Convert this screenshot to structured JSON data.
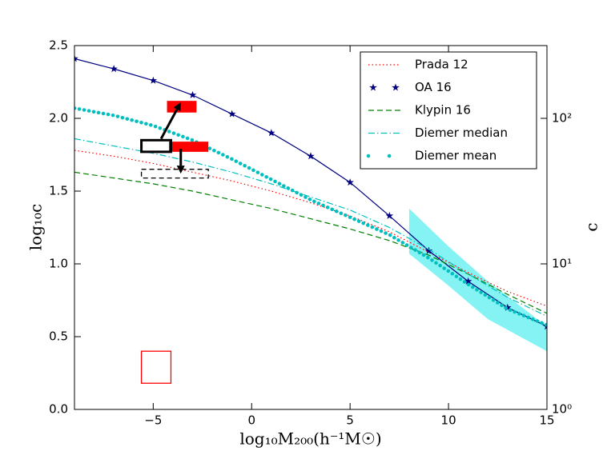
{
  "chart_data": {
    "type": "line",
    "xlabel": "log₁₀M₂₀₀(h⁻¹M☉)",
    "ylabel": "log₁₀c",
    "y2label": "c",
    "x": [
      -9,
      -7,
      -5,
      -3,
      -1,
      1,
      3,
      5,
      7,
      9,
      11,
      13,
      15
    ],
    "series": [
      {
        "name": "Prada 12",
        "color": "#ff0000",
        "style": "dotted",
        "values": [
          1.78,
          1.74,
          1.69,
          1.63,
          1.57,
          1.5,
          1.42,
          1.33,
          1.22,
          1.08,
          0.94,
          0.81,
          0.71
        ]
      },
      {
        "name": "OA 16",
        "color": "#000080",
        "style": "stars",
        "values": [
          2.41,
          2.34,
          2.26,
          2.16,
          2.03,
          1.9,
          1.74,
          1.56,
          1.33,
          1.09,
          0.88,
          0.7,
          0.57
        ]
      },
      {
        "name": "Klypin 16",
        "color": "#008000",
        "style": "dashed",
        "values": [
          1.63,
          1.59,
          1.55,
          1.5,
          1.44,
          1.38,
          1.31,
          1.24,
          1.16,
          1.06,
          0.93,
          0.79,
          0.66
        ]
      },
      {
        "name": "Diemer median",
        "color": "#00bfbf",
        "style": "dashdot",
        "values": [
          1.86,
          1.81,
          1.76,
          1.7,
          1.63,
          1.55,
          1.46,
          1.37,
          1.25,
          1.1,
          0.93,
          0.77,
          0.64
        ]
      },
      {
        "name": "Diemer mean",
        "color": "#00bfbf",
        "style": "dots",
        "values": [
          2.07,
          2.02,
          1.95,
          1.85,
          1.72,
          1.58,
          1.44,
          1.32,
          1.2,
          1.04,
          0.86,
          0.69,
          0.58
        ]
      }
    ],
    "band": {
      "color": "#66f0f0",
      "x": [
        8,
        10,
        12,
        15
      ],
      "upper": [
        1.38,
        1.12,
        0.88,
        0.57
      ],
      "lower": [
        1.07,
        0.85,
        0.62,
        0.4
      ]
    },
    "shapes": [
      {
        "kind": "rect",
        "x": [
          -4.3,
          -2.8
        ],
        "y": [
          2.04,
          2.12
        ],
        "fill": "#ff0000",
        "stroke": "none",
        "dash": false
      },
      {
        "kind": "rect",
        "x": [
          -4.2,
          -2.2
        ],
        "y": [
          1.77,
          1.84
        ],
        "fill": "#ff0000",
        "stroke": "none",
        "dash": false
      },
      {
        "kind": "rect",
        "x": [
          -5.6,
          -4.1
        ],
        "y": [
          1.77,
          1.85
        ],
        "fill": "none",
        "stroke": "#000000",
        "dash": false
      },
      {
        "kind": "rect",
        "x": [
          -5.6,
          -2.2
        ],
        "y": [
          1.59,
          1.65
        ],
        "fill": "none",
        "stroke": "#000000",
        "dash": true
      },
      {
        "kind": "rect",
        "x": [
          -5.6,
          -4.1
        ],
        "y": [
          0.18,
          0.4
        ],
        "fill": "none",
        "stroke": "#ff0000",
        "dash": false
      },
      {
        "kind": "arrow",
        "x": [
          -4.6,
          -3.6
        ],
        "y": [
          1.86,
          2.11
        ],
        "stroke": "#000000"
      },
      {
        "kind": "arrow",
        "x": [
          -3.6,
          -3.6
        ],
        "y": [
          1.79,
          1.62
        ],
        "stroke": "#000000"
      }
    ],
    "xlim": [
      -9,
      15
    ],
    "xticks": [
      {
        "value": -5,
        "label": "−5"
      },
      0,
      5,
      10,
      15
    ],
    "ylim": [
      0,
      2.5
    ],
    "yticks": [
      {
        "value": 0,
        "label": "0.0"
      },
      0.5,
      {
        "value": 1,
        "label": "1.0"
      },
      1.5,
      {
        "value": 2,
        "label": "2.0"
      },
      2.5
    ],
    "y2lim": [
      1,
      316.23
    ],
    "y2log": true,
    "y2ticks": [
      {
        "value": 1,
        "label": "10⁰"
      },
      {
        "value": 10,
        "label": "10¹"
      },
      {
        "value": 100,
        "label": "10²"
      }
    ],
    "legend": "upper right"
  }
}
